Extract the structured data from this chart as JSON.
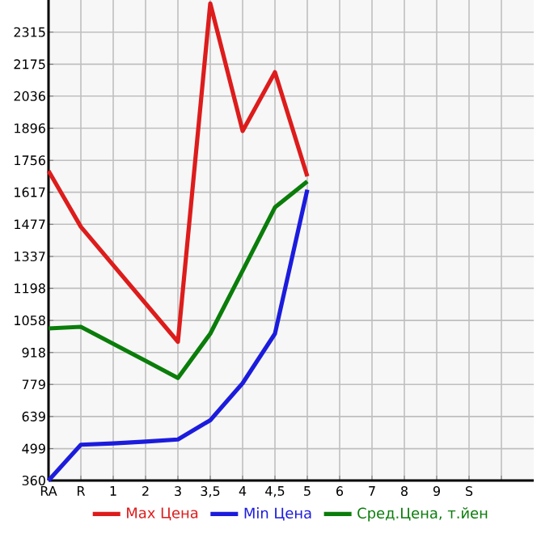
{
  "chart_data": {
    "type": "line",
    "categories": [
      "RA",
      "R",
      "1",
      "2",
      "3",
      "3,5",
      "4",
      "4,5",
      "5",
      "6",
      "7",
      "8",
      "9",
      "S",
      null
    ],
    "ylim": [
      360,
      2455
    ],
    "yticks": [
      360,
      499,
      639,
      779,
      918,
      1058,
      1198,
      1337,
      1477,
      1617,
      1756,
      1896,
      2036,
      2175,
      2315
    ],
    "grid": true,
    "legend": "bottom",
    "marker": "none",
    "line_style": "solid",
    "series": [
      {
        "name": "Max Цена",
        "color": "#dd1c1c",
        "values": [
          1710,
          1466,
          1299,
          1132,
          965,
          2440,
          1884,
          2140,
          1686,
          null,
          null,
          null,
          null,
          null,
          null
        ]
      },
      {
        "name": "Min Цена",
        "color": "#1c1cdd",
        "values": [
          360,
          516,
          522,
          530,
          539,
          623,
          784,
          1000,
          1628,
          null,
          null,
          null,
          null,
          null,
          null
        ]
      },
      {
        "name": "Сред.Цена, т.йен",
        "color": "#0a7d0a",
        "values": [
          1023,
          1030,
          956,
          882,
          807,
          1000,
          1275,
          1551,
          1664,
          null,
          null,
          null,
          null,
          null,
          null
        ]
      }
    ]
  }
}
